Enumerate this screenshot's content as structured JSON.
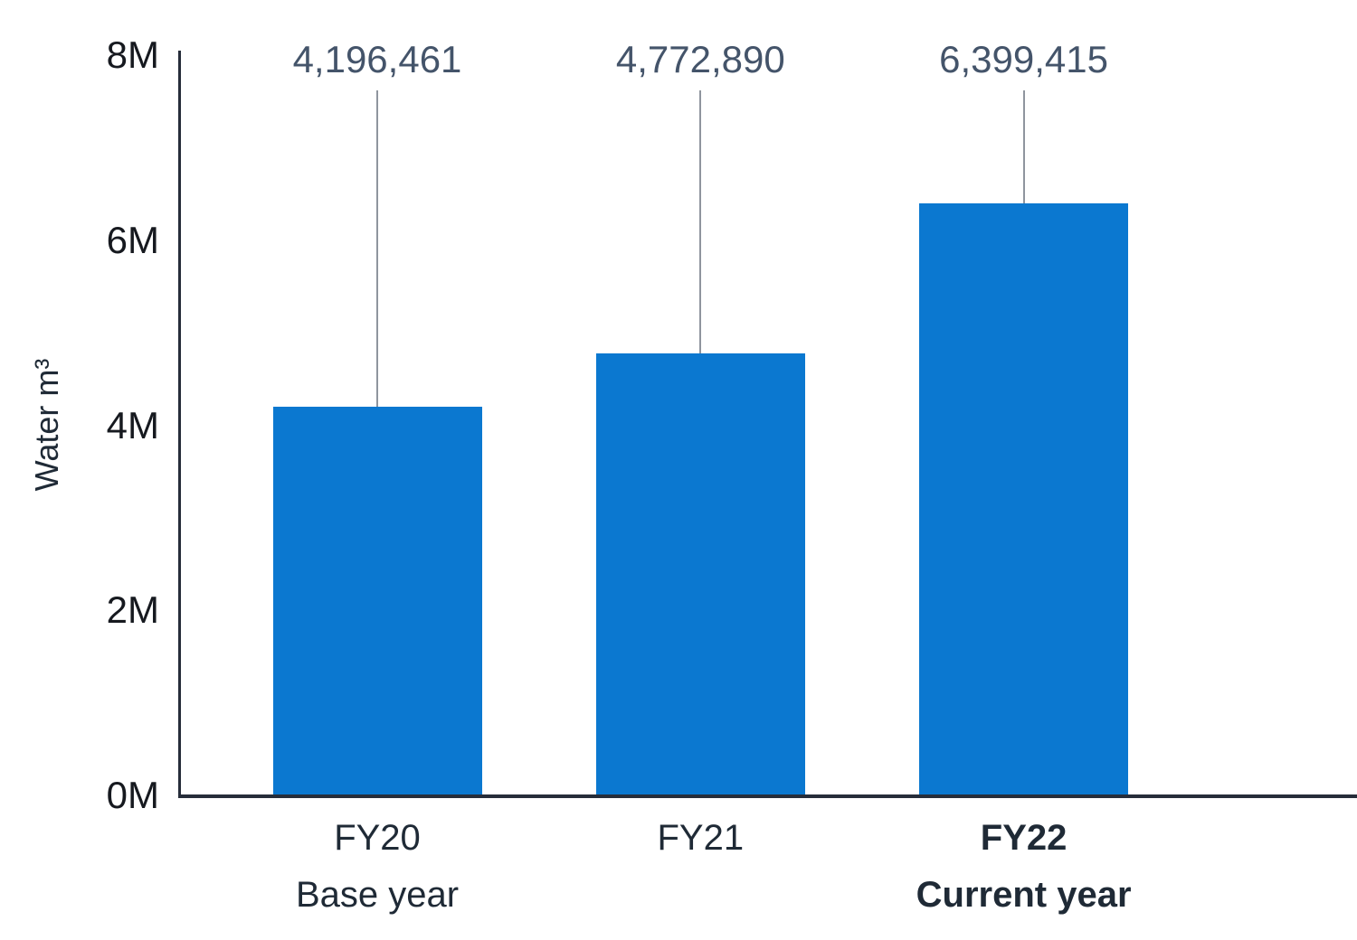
{
  "chart_data": {
    "type": "bar",
    "title": "",
    "xlabel": "",
    "ylabel": "Water m³",
    "ylim": [
      0,
      8000000
    ],
    "grid": "off",
    "legend": "none",
    "yticks": [
      {
        "value": 0,
        "label": "0M"
      },
      {
        "value": 2000000,
        "label": "2M"
      },
      {
        "value": 4000000,
        "label": "4M"
      },
      {
        "value": 6000000,
        "label": "6M"
      },
      {
        "value": 8000000,
        "label": "8M"
      }
    ],
    "bars": [
      {
        "category": "FY20",
        "sublabel": "Base year",
        "value": 4196461,
        "value_label": "4,196,461",
        "emphasis": false
      },
      {
        "category": "FY21",
        "sublabel": "",
        "value": 4772890,
        "value_label": "4,772,890",
        "emphasis": false
      },
      {
        "category": "FY22",
        "sublabel": "Current year",
        "value": 6399415,
        "value_label": "6,399,415",
        "emphasis": true
      }
    ],
    "colors": {
      "bar": "#0b78d0",
      "value_label": "#44546a",
      "tick_label": "#16191f",
      "category_label": "#1f2a36",
      "axis": "#262d3a",
      "leader_line": "#8f959e",
      "background": "#ffffff"
    }
  }
}
